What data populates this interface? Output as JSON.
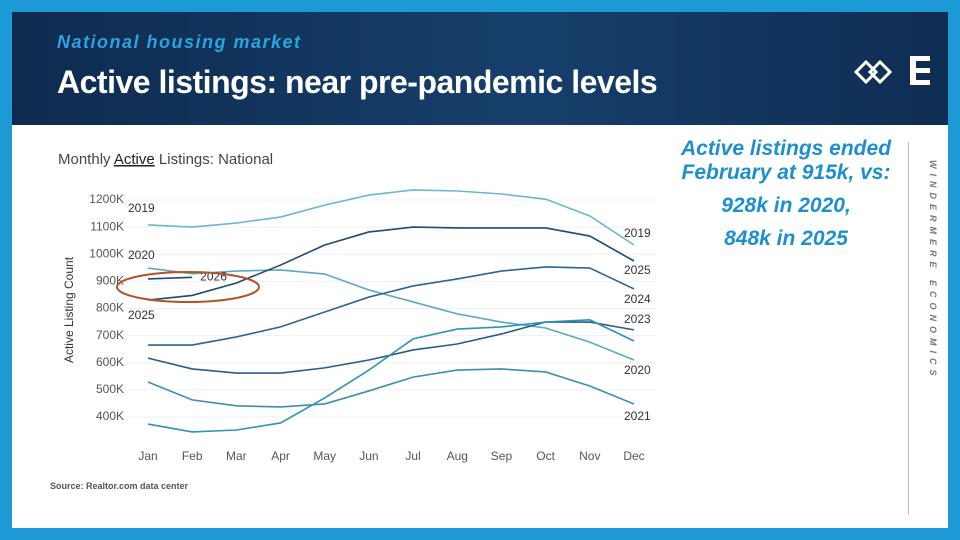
{
  "header": {
    "subtitle": "National housing market",
    "title": "Active listings: near pre-pandemic levels"
  },
  "chart_data": {
    "type": "line",
    "title": [
      "Monthly",
      "Active",
      "Listings: National"
    ],
    "y_label": "Active Listing Count",
    "categories": [
      "Jan",
      "Feb",
      "Mar",
      "Apr",
      "May",
      "Jun",
      "Jul",
      "Aug",
      "Sep",
      "Oct",
      "Nov",
      "Dec"
    ],
    "ylim": [
      300000,
      1250000
    ],
    "yticks": [
      {
        "value": 400000,
        "label": "400K"
      },
      {
        "value": 500000,
        "label": "500K"
      },
      {
        "value": 600000,
        "label": "600K"
      },
      {
        "value": 700000,
        "label": "700K"
      },
      {
        "value": 800000,
        "label": "800K"
      },
      {
        "value": 900000,
        "label": "900K"
      },
      {
        "value": 1000000,
        "label": "1000K"
      },
      {
        "value": 1100000,
        "label": "1100K"
      },
      {
        "value": 1200000,
        "label": "1200K"
      }
    ],
    "grid": true,
    "series": [
      {
        "name": "2019",
        "color": "#6cb8c9",
        "label_at": [
          "start",
          "end"
        ],
        "values": [
          1108000,
          1100000,
          1115000,
          1137000,
          1181000,
          1218000,
          1237000,
          1233000,
          1222000,
          1203000,
          1141000,
          1034000
        ]
      },
      {
        "name": "2020",
        "color": "#5aaabf",
        "label_at": [
          "start",
          "end"
        ],
        "values": [
          949000,
          928000,
          938000,
          942000,
          927000,
          868000,
          824000,
          780000,
          750000,
          728000,
          676000,
          610000
        ]
      },
      {
        "name": "2025",
        "color": "#1d4b73",
        "label_at": [
          "start",
          "end"
        ],
        "values": [
          831000,
          848000,
          894000,
          960000,
          1034000,
          1082000,
          1100000,
          1097000,
          1097000,
          1097000,
          1067000,
          975000
        ]
      },
      {
        "name": "2026",
        "color": "#1d4b73",
        "label_at": [
          "end"
        ],
        "values": [
          909000,
          915000,
          null,
          null,
          null,
          null,
          null,
          null,
          null,
          null,
          null,
          null
        ]
      },
      {
        "name": "2024",
        "color": "#2c6690",
        "label_at": [
          "end"
        ],
        "values": [
          665000,
          665000,
          695000,
          732000,
          787000,
          842000,
          883000,
          909000,
          938000,
          953000,
          949000,
          872000
        ]
      },
      {
        "name": "2023",
        "color": "#2a5d84",
        "label_at": [
          "end"
        ],
        "values": [
          617000,
          577000,
          562000,
          562000,
          581000,
          610000,
          647000,
          669000,
          706000,
          750000,
          750000,
          721000
        ]
      },
      {
        "color": "#2e93b8",
        "values": [
          374000,
          345000,
          352000,
          378000,
          470000,
          573000,
          688000,
          724000,
          732000,
          750000,
          758000,
          680000
        ]
      },
      {
        "name": "2021",
        "color": "#3f8db0",
        "label_at": [
          "end"
        ],
        "values": [
          529000,
          463000,
          441000,
          437000,
          448000,
          496000,
          547000,
          573000,
          577000,
          566000,
          514000,
          448000
        ]
      }
    ]
  },
  "callout": {
    "lines": [
      "Active listings ended February at 915k, vs:",
      "928k in 2020,",
      "848k in 2025"
    ]
  },
  "source": "Source: Realtor.com data center",
  "brand": "WINDERMERE ECONOMICS"
}
